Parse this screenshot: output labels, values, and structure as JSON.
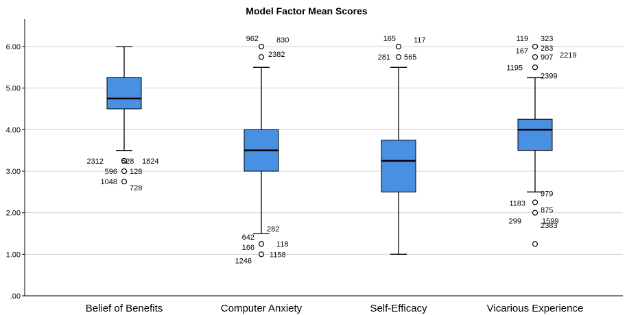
{
  "chart_data": {
    "type": "box",
    "title": "Model Factor Mean Scores",
    "xlabel": "",
    "ylabel": "",
    "ylim": [
      0,
      6.5
    ],
    "y_ticks": [
      ".00",
      "1.00",
      "2.00",
      "3.00",
      "4.00",
      "5.00",
      "6.00"
    ],
    "grid": "horizontal",
    "box_color": "#4A90E2",
    "categories": [
      "Belief of Benefits",
      "Computer Anxiety",
      "Self-Efficacy",
      "Vicarious Experience"
    ],
    "boxes": [
      {
        "name": "Belief of Benefits",
        "whisker_low": 3.5,
        "q1": 4.5,
        "median": 4.75,
        "q3": 5.25,
        "whisker_high": 6.0,
        "outliers": [
          {
            "value": 3.25,
            "labels": [
              "2312",
              "528",
              "1824"
            ]
          },
          {
            "value": 3.0,
            "labels": [
              "596",
              "128"
            ]
          },
          {
            "value": 2.75,
            "labels": [
              "1048",
              "728"
            ]
          }
        ]
      },
      {
        "name": "Computer Anxiety",
        "whisker_low": 1.5,
        "q1": 3.0,
        "median": 3.5,
        "q3": 4.0,
        "whisker_high": 5.5,
        "outliers": [
          {
            "value": 6.0,
            "labels": [
              "962",
              "830"
            ]
          },
          {
            "value": 5.75,
            "labels": [
              "2382"
            ]
          },
          {
            "value": 1.25,
            "labels": [
              "642",
              "282",
              "166",
              "118"
            ]
          },
          {
            "value": 1.0,
            "labels": [
              "1246",
              "1158"
            ]
          }
        ]
      },
      {
        "name": "Self-Efficacy",
        "whisker_low": 1.0,
        "q1": 2.5,
        "median": 3.25,
        "q3": 3.75,
        "whisker_high": 5.5,
        "outliers": [
          {
            "value": 6.0,
            "labels": [
              "165",
              "117"
            ]
          },
          {
            "value": 5.75,
            "labels": [
              "281",
              "565"
            ]
          }
        ]
      },
      {
        "name": "Vicarious Experience",
        "whisker_low": 2.5,
        "q1": 3.5,
        "median": 4.0,
        "q3": 4.25,
        "whisker_high": 5.25,
        "outliers": [
          {
            "value": 6.0,
            "labels": [
              "119",
              "323",
              "283"
            ]
          },
          {
            "value": 5.75,
            "labels": [
              "167",
              "907",
              "2219"
            ]
          },
          {
            "value": 5.5,
            "labels": [
              "1195",
              "2399"
            ]
          },
          {
            "value": 2.25,
            "labels": [
              "979",
              "1183"
            ]
          },
          {
            "value": 2.0,
            "labels": [
              "875",
              "299",
              "1599"
            ]
          },
          {
            "value": 1.25,
            "labels": [
              "2383"
            ]
          }
        ]
      }
    ]
  }
}
